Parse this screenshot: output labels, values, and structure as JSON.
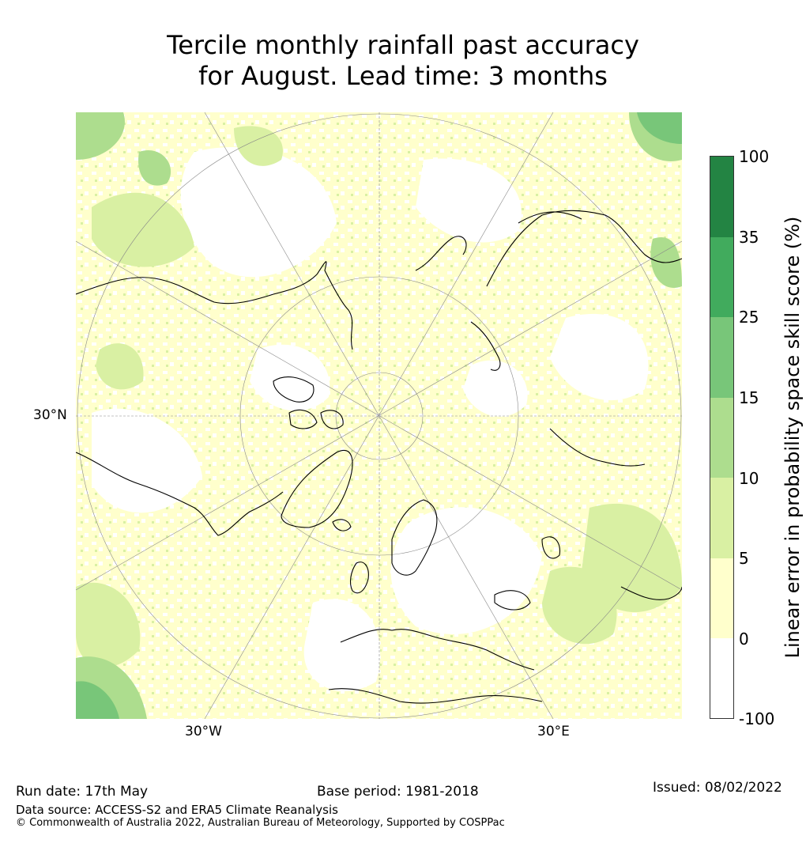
{
  "title": {
    "line1": "Tercile monthly rainfall past accuracy",
    "line2": "for August. Lead time: 3 months"
  },
  "map": {
    "projection": "north-polar-stereographic",
    "latitude_labels": [
      "30°N"
    ],
    "longitude_labels": [
      "30°W",
      "30°E"
    ],
    "colors": {
      "white": "#ffffff",
      "light_yellow": "#ffffcc",
      "light_green": "#d9f0a3",
      "mid_green": "#addd8e",
      "green": "#78c679",
      "dark_green": "#41ab5d",
      "darkest_green": "#238443",
      "coastline": "#000000",
      "gridline": "#888888"
    }
  },
  "colorbar": {
    "label": "Linear error in probability space skill score (%)",
    "ticks": [
      "100",
      "35",
      "25",
      "15",
      "10",
      "5",
      "0",
      "-100"
    ],
    "segments": [
      {
        "from": "35",
        "to": "100",
        "color": "#238443"
      },
      {
        "from": "25",
        "to": "35",
        "color": "#41ab5d"
      },
      {
        "from": "15",
        "to": "25",
        "color": "#78c679"
      },
      {
        "from": "10",
        "to": "15",
        "color": "#addd8e"
      },
      {
        "from": "5",
        "to": "10",
        "color": "#d9f0a3"
      },
      {
        "from": "0",
        "to": "5",
        "color": "#ffffcc"
      },
      {
        "from": "-100",
        "to": "0",
        "color": "#ffffff"
      }
    ]
  },
  "footer": {
    "run_date": "Run date: 17th May",
    "base_period": "Base period: 1981-2018",
    "issued": "Issued: 08/02/2022",
    "data_source": "Data source: ACCESS-S2 and ERA5 Climate Reanalysis",
    "copyright": "© Commonwealth of Australia 2022, Australian Bureau of Meteorology, Supported by COSPPac"
  }
}
